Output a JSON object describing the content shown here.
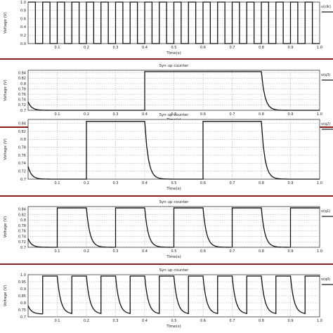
{
  "colors": {
    "separator": "#8b1c1c",
    "trace": "#111111",
    "grid": "#9a9a9a",
    "background": "#ffffff"
  },
  "chart_data": [
    {
      "type": "line",
      "title": "",
      "xlabel": "Time(s)",
      "ylabel": "Voltage (V)",
      "legend": "v(clk)",
      "xlim": [
        0,
        1.0
      ],
      "ylim": [
        0,
        1.0
      ],
      "x_ticks": [
        "0.1",
        "0.2",
        "0.3",
        "0.4",
        "0.5",
        "0.6",
        "0.7",
        "0.8",
        "0.9",
        "1.0"
      ],
      "y_ticks": [
        "0.0",
        "0.2",
        "0.4",
        "0.6",
        "0.8",
        "1.0"
      ],
      "grid": true,
      "series": [
        {
          "name": "v(clk)",
          "waveform": "square",
          "period": 0.05,
          "duty": 0.5,
          "low": 0.0,
          "high": 1.0
        }
      ]
    },
    {
      "type": "line",
      "title": "Syn up counter",
      "xlabel": "Time(s)",
      "ylabel": "Voltage (V)",
      "legend": "v(q3)",
      "xlim": [
        0,
        1.0
      ],
      "ylim": [
        0.7,
        0.85
      ],
      "x_ticks": [
        "0.1",
        "0.2",
        "0.3",
        "0.4",
        "0.5",
        "0.6",
        "0.7",
        "0.8",
        "0.9",
        "1.0"
      ],
      "y_ticks": [
        "0.7",
        "0.72",
        "0.74",
        "0.76",
        "0.78",
        "0.8",
        "0.82",
        "0.84"
      ],
      "grid": true,
      "series": [
        {
          "name": "v(q3)",
          "waveform": "counter-bit",
          "period": 0.8,
          "low": 0.7,
          "high": 0.845
        }
      ]
    },
    {
      "type": "line",
      "title": "Syn up counter",
      "xlabel": "Time(s)",
      "ylabel": "Voltage (V)",
      "legend": "v(q2)",
      "xlim": [
        0,
        1.0
      ],
      "ylim": [
        0.7,
        0.85
      ],
      "x_ticks": [
        "0.1",
        "0.2",
        "0.3",
        "0.4",
        "0.5",
        "0.6",
        "0.7",
        "0.8",
        "0.9",
        "1.0"
      ],
      "y_ticks": [
        "0.7",
        "0.72",
        "0.74",
        "0.76",
        "0.78",
        "0.8",
        "0.82",
        "0.84"
      ],
      "grid": true,
      "series": [
        {
          "name": "v(q2)",
          "waveform": "counter-bit",
          "period": 0.4,
          "low": 0.7,
          "high": 0.845
        }
      ]
    },
    {
      "type": "line",
      "title": "Syn up counter",
      "xlabel": "Time(s)",
      "ylabel": "Voltage (V)",
      "legend": "v(q1)",
      "xlim": [
        0,
        1.0
      ],
      "ylim": [
        0.7,
        0.85
      ],
      "x_ticks": [
        "0.1",
        "0.2",
        "0.3",
        "0.4",
        "0.5",
        "0.6",
        "0.7",
        "0.8",
        "0.9",
        "1.0"
      ],
      "y_ticks": [
        "0.7",
        "0.72",
        "0.74",
        "0.76",
        "0.78",
        "0.8",
        "0.82",
        "0.84"
      ],
      "grid": true,
      "series": [
        {
          "name": "v(q1)",
          "waveform": "counter-bit",
          "period": 0.2,
          "low": 0.7,
          "high": 0.845
        }
      ]
    },
    {
      "type": "line",
      "title": "Syn up counter",
      "xlabel": "Time(s)",
      "ylabel": "Voltage (V)",
      "legend": "v(q0)",
      "xlim": [
        0,
        1.0
      ],
      "ylim": [
        0.7,
        1.0
      ],
      "x_ticks": [
        "0.1",
        "0.2",
        "0.3",
        "0.4",
        "0.5",
        "0.6",
        "0.7",
        "0.8",
        "0.9",
        "1.0"
      ],
      "y_ticks": [
        "0.7",
        "0.75",
        "0.8",
        "0.85",
        "0.9",
        "0.95",
        "1.0"
      ],
      "grid": true,
      "series": [
        {
          "name": "v(q0)",
          "waveform": "counter-bit",
          "period": 0.1,
          "low": 0.72,
          "high": 0.99
        }
      ]
    }
  ]
}
